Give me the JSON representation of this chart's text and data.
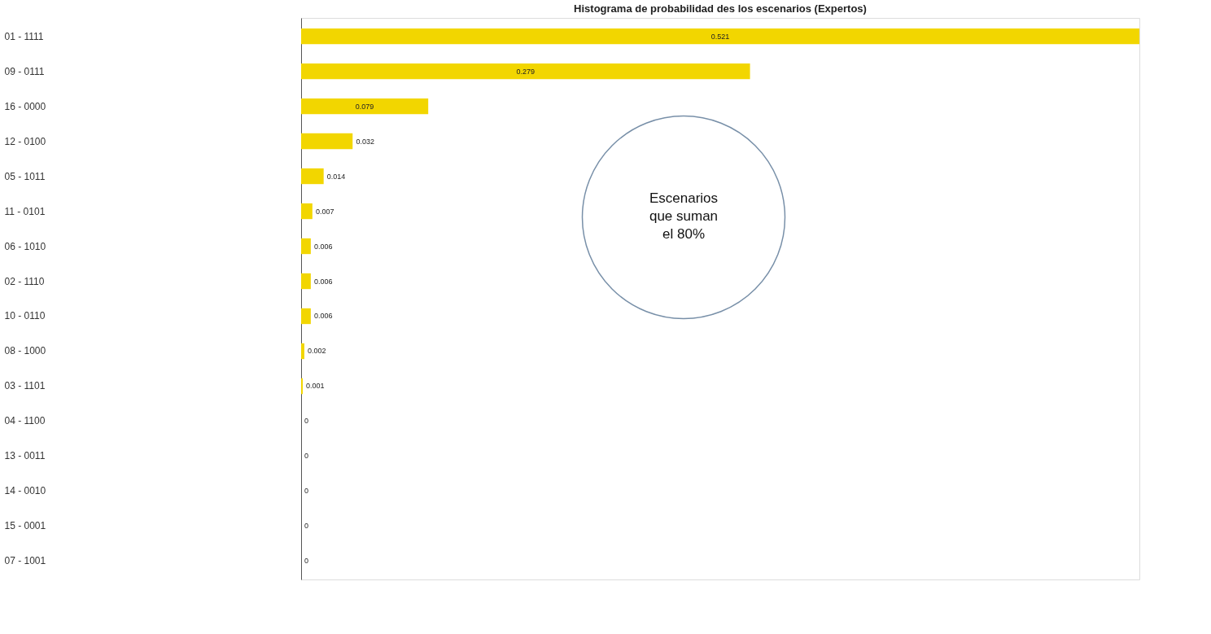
{
  "chart_data": {
    "type": "bar",
    "orientation": "horizontal",
    "title": "Histograma de probabilidad des los escenarios (Expertos)",
    "categories": [
      "01 - 1111",
      "09 - 0111",
      "16 - 0000",
      "12 - 0100",
      "05 - 1011",
      "11 - 0101",
      "06 - 1010",
      "02 - 1110",
      "10 - 0110",
      "08 - 1000",
      "03 - 1101",
      "04 - 1100",
      "13 - 0011",
      "14 - 0010",
      "15 - 0001",
      "07 - 1001"
    ],
    "values": [
      0.521,
      0.279,
      0.079,
      0.032,
      0.014,
      0.007,
      0.006,
      0.006,
      0.006,
      0.002,
      0.001,
      0,
      0,
      0,
      0,
      0
    ],
    "color": "#f2d600",
    "data_labels": true,
    "grid": false,
    "annotations": [
      "Escenarios que suman el 80%"
    ]
  }
}
